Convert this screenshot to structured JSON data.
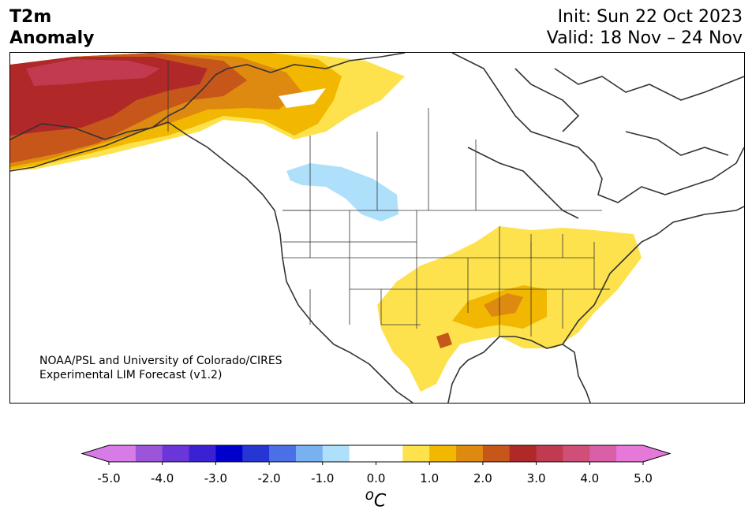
{
  "header": {
    "variable": "T2m",
    "subtitle": "Anomaly",
    "init": "Init: Sun 22 Oct 2023",
    "valid": "Valid: 18 Nov – 24 Nov"
  },
  "credit": {
    "line1": "NOAA/PSL and University of Colorado/CIRES",
    "line2": "Experimental LIM Forecast (v1.2)"
  },
  "colorbar": {
    "unit_base": "C",
    "unit_sup": "o",
    "ticks": [
      "-5.0",
      "-4.0",
      "-3.0",
      "-2.0",
      "-1.0",
      "0.0",
      "1.0",
      "2.0",
      "3.0",
      "4.0",
      "5.0"
    ],
    "colors": [
      "#d77ce6",
      "#9c55d9",
      "#6a35d9",
      "#3a22d4",
      "#0000cd",
      "#2636d4",
      "#4b6fe6",
      "#79b0f0",
      "#aee0fb",
      "#ffffff",
      "#ffffff",
      "#fde24e",
      "#f2b700",
      "#de8a10",
      "#c6561a",
      "#b12828",
      "#c23a50",
      "#cf4f78",
      "#d95fa8",
      "#e578d9"
    ],
    "under_color": "#d77ce6",
    "over_color": "#e578d9"
  },
  "map": {
    "region": "North America",
    "anomaly_colors": {
      "warm_1": "#fde24e",
      "warm_2": "#f2b700",
      "warm_3": "#de8a10",
      "warm_4": "#c6561a",
      "warm_5": "#b12828",
      "warm_6": "#c23a50",
      "cool_1": "#aee0fb"
    }
  }
}
